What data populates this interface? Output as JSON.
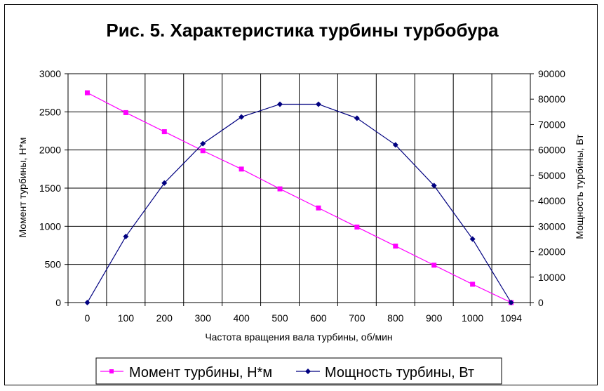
{
  "chart_data": {
    "type": "line",
    "title": "Рис. 5. Характеристика турбины турбобура",
    "xlabel": "Частота вращения вала турбины, об/мин",
    "ylabel": "Момент турбины, Н*м",
    "y2label": "Мощность турбины, Вт",
    "categories": [
      "0",
      "100",
      "200",
      "300",
      "400",
      "500",
      "600",
      "700",
      "800",
      "900",
      "1000",
      "1094"
    ],
    "y_ticks": [
      "0",
      "500",
      "1000",
      "1500",
      "2000",
      "2500",
      "3000"
    ],
    "y2_ticks": [
      "0",
      "10000",
      "20000",
      "30000",
      "40000",
      "50000",
      "60000",
      "70000",
      "80000",
      "90000"
    ],
    "ylim": [
      0,
      3000
    ],
    "y2lim": [
      0,
      90000
    ],
    "grid": true,
    "legend_position": "bottom",
    "series": [
      {
        "name": "Момент турбины, Н*м",
        "axis": "left",
        "color": "#ff00ff",
        "marker": "square",
        "values": [
          2750,
          2490,
          2240,
          1990,
          1750,
          1490,
          1240,
          990,
          740,
          490,
          240,
          0
        ]
      },
      {
        "name": "Мощность турбины, Вт",
        "axis": "right",
        "color": "#000080",
        "marker": "diamond",
        "values": [
          0,
          26000,
          47000,
          62500,
          73000,
          78000,
          78000,
          72500,
          62000,
          46000,
          25000,
          0
        ]
      }
    ]
  }
}
